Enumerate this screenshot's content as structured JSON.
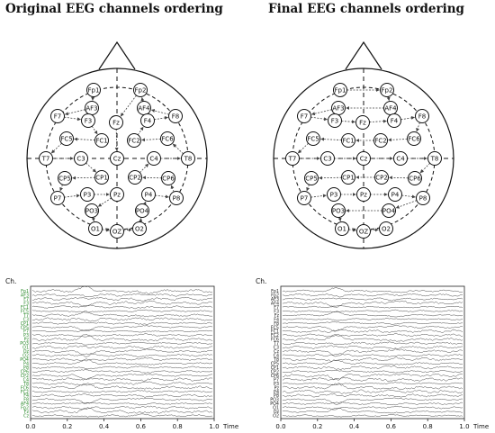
{
  "panels": [
    {
      "title": "Original EEG channels ordering",
      "channel_order": [
        "Fp1",
        "AF3",
        "F7",
        "F3",
        "FC1",
        "FC5",
        "T7",
        "C3",
        "CP1",
        "CP5",
        "P7",
        "P3",
        "Pz",
        "PO3",
        "O1",
        "OZ",
        "O2",
        "PO4",
        "P4",
        "P8",
        "CP6",
        "CP2",
        "C4",
        "T8",
        "FC6",
        "FC2",
        "F4",
        "F8",
        "AF4",
        "Fp2",
        "Fz",
        "Cz"
      ],
      "arrow_path": [
        "Fp1",
        "AF3",
        "F7",
        "F3",
        "FC1",
        "FC5",
        "T7",
        "C3",
        "CP1",
        "CP5",
        "P7",
        "P3",
        "Pz",
        "PO3",
        "O1",
        "OZ",
        "O2",
        "PO4",
        "P4",
        "P8",
        "CP6",
        "CP2",
        "C4",
        "T8",
        "FC6",
        "FC2",
        "F4",
        "F8",
        "AF4",
        "Fp2",
        "Fz",
        "Cz"
      ],
      "eeg": {
        "axis_label": "Ch.",
        "x_ticks": [
          "0.0",
          "0.2",
          "0.4",
          "0.6",
          "0.8",
          "1.0"
        ],
        "x_label": "Time",
        "channel_labels": [
          "Fp1",
          "AF3",
          "F7",
          "F3",
          "FC1",
          "FC5",
          "T7",
          "C3",
          "CP1",
          "CP5",
          "P7",
          "P3",
          "Pz",
          "PO3",
          "O1",
          "Oz",
          "O2",
          "PO4",
          "P4",
          "P8",
          "CP6",
          "CP2",
          "C4",
          "T8",
          "FC6",
          "FC2",
          "F4",
          "F8",
          "AF4",
          "Fp2",
          "Fz",
          "Cz"
        ],
        "label_color": "#2e8b2e"
      }
    },
    {
      "title": "Final EEG channels ordering",
      "channel_order": [
        "Fp1",
        "Fp2",
        "AF3",
        "AF4",
        "F7",
        "F3",
        "Fz",
        "F4",
        "F8",
        "FC5",
        "FC1",
        "FC2",
        "FC6",
        "T7",
        "C3",
        "Cz",
        "C4",
        "T8",
        "CP5",
        "CP1",
        "CP2",
        "CP6",
        "P7",
        "P3",
        "Pz",
        "P4",
        "P8",
        "PO3",
        "PO4",
        "O1",
        "OZ",
        "O2"
      ],
      "arrow_path": [
        "Fp1",
        "Fp2",
        "AF4",
        "AF3",
        "F7",
        "F3",
        "Fz",
        "F4",
        "F8",
        "FC6",
        "FC2",
        "FC1",
        "FC5",
        "T7",
        "C3",
        "Cz",
        "C4",
        "T8",
        "CP6",
        "CP2",
        "CP1",
        "CP5",
        "P7",
        "P3",
        "Pz",
        "P4",
        "P8",
        "PO4",
        "PO3",
        "O1",
        "OZ",
        "O2"
      ],
      "eeg": {
        "axis_label": "Ch.",
        "x_ticks": [
          "0.0",
          "0.2",
          "0.4",
          "0.6",
          "0.8",
          "1.0"
        ],
        "x_label": "Time",
        "channel_labels": [
          "Fp1",
          "Fp2",
          "AF3",
          "AF4",
          "F7",
          "F3",
          "Fz",
          "F4",
          "F8",
          "FC5",
          "FC1",
          "FC2",
          "FC6",
          "T7",
          "C3",
          "Cz",
          "C4",
          "T8",
          "CP5",
          "CP1",
          "CP2",
          "CP6",
          "P7",
          "P3",
          "Pz",
          "P4",
          "P8",
          "PO3",
          "PO4",
          "O1",
          "Oz",
          "O2"
        ],
        "label_color": "#222222"
      }
    }
  ]
}
